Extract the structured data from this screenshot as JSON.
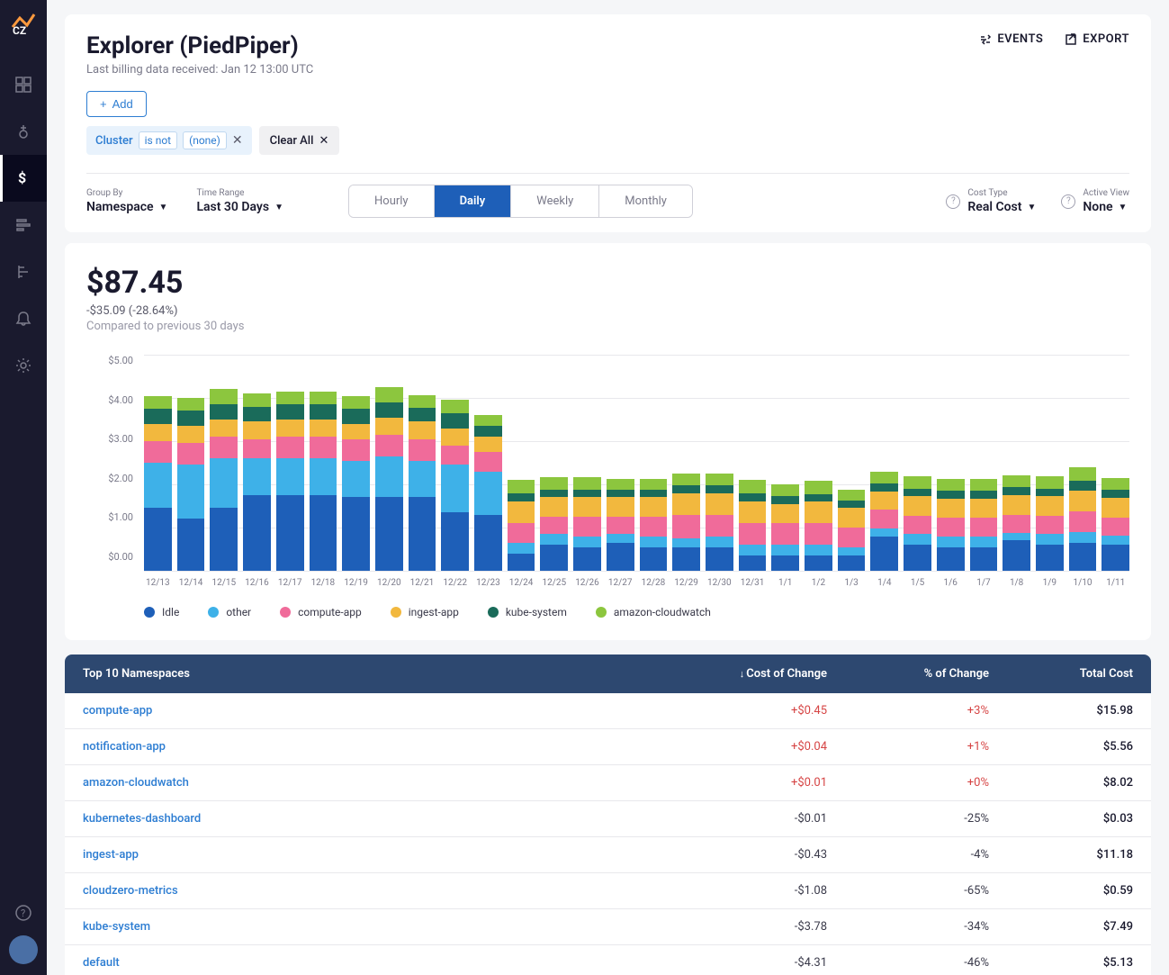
{
  "page": {
    "title": "Explorer (PiedPiper)",
    "subtitle": "Last billing data received: Jan 12 13:00 UTC"
  },
  "header_actions": {
    "events": "EVENTS",
    "export": "EXPORT"
  },
  "filters": {
    "add_label": "Add",
    "chip": {
      "field": "Cluster",
      "operator": "is not",
      "value": "(none)"
    },
    "clear_all": "Clear All"
  },
  "controls": {
    "group_by_label": "Group By",
    "group_by_value": "Namespace",
    "time_range_label": "Time Range",
    "time_range_value": "Last 30 Days",
    "granularity": {
      "hourly": "Hourly",
      "daily": "Daily",
      "weekly": "Weekly",
      "monthly": "Monthly",
      "active": "daily"
    },
    "cost_type_label": "Cost Type",
    "cost_type_value": "Real Cost",
    "active_view_label": "Active View",
    "active_view_value": "None"
  },
  "summary": {
    "total": "$87.45",
    "delta": "-$35.09 (-28.64%)",
    "compare": "Compared to previous 30 days"
  },
  "chart": {
    "type": "stacked-bar",
    "ylim": [
      0,
      5
    ],
    "ytick_step": 1,
    "yticks": [
      "$5.00",
      "$4.00",
      "$3.00",
      "$2.00",
      "$1.00",
      "$0.00"
    ],
    "series_colors": {
      "idle": "#1e5fb8",
      "other": "#3eb1e8",
      "compute_app": "#f06b9a",
      "ingest_app": "#f2b83e",
      "kube_system": "#1a6b5a",
      "amazon_cloudwatch": "#8cc63e"
    },
    "xlabels": [
      "12/13",
      "12/14",
      "12/15",
      "12/16",
      "12/17",
      "12/18",
      "12/19",
      "12/20",
      "12/21",
      "12/22",
      "12/23",
      "12/24",
      "12/25",
      "12/26",
      "12/27",
      "12/28",
      "12/29",
      "12/30",
      "12/31",
      "1/1",
      "1/2",
      "1/3",
      "1/4",
      "1/5",
      "1/6",
      "1/7",
      "1/8",
      "1/9",
      "1/10",
      "1/11"
    ],
    "data": [
      {
        "idle": 1.45,
        "other": 1.05,
        "compute_app": 0.5,
        "ingest_app": 0.4,
        "kube_system": 0.35,
        "amazon_cloudwatch": 0.3
      },
      {
        "idle": 1.2,
        "other": 1.25,
        "compute_app": 0.5,
        "ingest_app": 0.4,
        "kube_system": 0.35,
        "amazon_cloudwatch": 0.3
      },
      {
        "idle": 1.45,
        "other": 1.15,
        "compute_app": 0.5,
        "ingest_app": 0.4,
        "kube_system": 0.35,
        "amazon_cloudwatch": 0.35
      },
      {
        "idle": 1.75,
        "other": 0.85,
        "compute_app": 0.45,
        "ingest_app": 0.4,
        "kube_system": 0.35,
        "amazon_cloudwatch": 0.3
      },
      {
        "idle": 1.75,
        "other": 0.85,
        "compute_app": 0.5,
        "ingest_app": 0.4,
        "kube_system": 0.35,
        "amazon_cloudwatch": 0.3
      },
      {
        "idle": 1.75,
        "other": 0.85,
        "compute_app": 0.5,
        "ingest_app": 0.4,
        "kube_system": 0.35,
        "amazon_cloudwatch": 0.3
      },
      {
        "idle": 1.7,
        "other": 0.85,
        "compute_app": 0.5,
        "ingest_app": 0.35,
        "kube_system": 0.35,
        "amazon_cloudwatch": 0.3
      },
      {
        "idle": 1.7,
        "other": 0.95,
        "compute_app": 0.5,
        "ingest_app": 0.4,
        "kube_system": 0.35,
        "amazon_cloudwatch": 0.35
      },
      {
        "idle": 1.7,
        "other": 0.85,
        "compute_app": 0.5,
        "ingest_app": 0.4,
        "kube_system": 0.32,
        "amazon_cloudwatch": 0.3
      },
      {
        "idle": 1.35,
        "other": 1.1,
        "compute_app": 0.45,
        "ingest_app": 0.4,
        "kube_system": 0.35,
        "amazon_cloudwatch": 0.3
      },
      {
        "idle": 1.3,
        "other": 1.0,
        "compute_app": 0.45,
        "ingest_app": 0.35,
        "kube_system": 0.25,
        "amazon_cloudwatch": 0.25
      },
      {
        "idle": 0.4,
        "other": 0.25,
        "compute_app": 0.45,
        "ingest_app": 0.5,
        "kube_system": 0.2,
        "amazon_cloudwatch": 0.3
      },
      {
        "idle": 0.6,
        "other": 0.25,
        "compute_app": 0.4,
        "ingest_app": 0.45,
        "kube_system": 0.18,
        "amazon_cloudwatch": 0.28
      },
      {
        "idle": 0.55,
        "other": 0.25,
        "compute_app": 0.45,
        "ingest_app": 0.45,
        "kube_system": 0.18,
        "amazon_cloudwatch": 0.28
      },
      {
        "idle": 0.65,
        "other": 0.2,
        "compute_app": 0.4,
        "ingest_app": 0.45,
        "kube_system": 0.18,
        "amazon_cloudwatch": 0.25
      },
      {
        "idle": 0.55,
        "other": 0.25,
        "compute_app": 0.45,
        "ingest_app": 0.45,
        "kube_system": 0.18,
        "amazon_cloudwatch": 0.25
      },
      {
        "idle": 0.55,
        "other": 0.2,
        "compute_app": 0.55,
        "ingest_app": 0.5,
        "kube_system": 0.18,
        "amazon_cloudwatch": 0.28
      },
      {
        "idle": 0.55,
        "other": 0.25,
        "compute_app": 0.5,
        "ingest_app": 0.5,
        "kube_system": 0.18,
        "amazon_cloudwatch": 0.28
      },
      {
        "idle": 0.35,
        "other": 0.25,
        "compute_app": 0.5,
        "ingest_app": 0.5,
        "kube_system": 0.2,
        "amazon_cloudwatch": 0.3
      },
      {
        "idle": 0.35,
        "other": 0.25,
        "compute_app": 0.5,
        "ingest_app": 0.45,
        "kube_system": 0.18,
        "amazon_cloudwatch": 0.28
      },
      {
        "idle": 0.35,
        "other": 0.25,
        "compute_app": 0.5,
        "ingest_app": 0.5,
        "kube_system": 0.18,
        "amazon_cloudwatch": 0.3
      },
      {
        "idle": 0.35,
        "other": 0.2,
        "compute_app": 0.45,
        "ingest_app": 0.45,
        "kube_system": 0.18,
        "amazon_cloudwatch": 0.25
      },
      {
        "idle": 0.8,
        "other": 0.17,
        "compute_app": 0.45,
        "ingest_app": 0.42,
        "kube_system": 0.18,
        "amazon_cloudwatch": 0.28
      },
      {
        "idle": 0.6,
        "other": 0.25,
        "compute_app": 0.42,
        "ingest_app": 0.45,
        "kube_system": 0.18,
        "amazon_cloudwatch": 0.28
      },
      {
        "idle": 0.55,
        "other": 0.25,
        "compute_app": 0.42,
        "ingest_app": 0.45,
        "kube_system": 0.18,
        "amazon_cloudwatch": 0.28
      },
      {
        "idle": 0.55,
        "other": 0.25,
        "compute_app": 0.42,
        "ingest_app": 0.45,
        "kube_system": 0.18,
        "amazon_cloudwatch": 0.28
      },
      {
        "idle": 0.7,
        "other": 0.18,
        "compute_app": 0.42,
        "ingest_app": 0.45,
        "kube_system": 0.18,
        "amazon_cloudwatch": 0.28
      },
      {
        "idle": 0.6,
        "other": 0.25,
        "compute_app": 0.42,
        "ingest_app": 0.45,
        "kube_system": 0.18,
        "amazon_cloudwatch": 0.28
      },
      {
        "idle": 0.65,
        "other": 0.25,
        "compute_app": 0.48,
        "ingest_app": 0.48,
        "kube_system": 0.22,
        "amazon_cloudwatch": 0.32
      },
      {
        "idle": 0.6,
        "other": 0.22,
        "compute_app": 0.42,
        "ingest_app": 0.45,
        "kube_system": 0.18,
        "amazon_cloudwatch": 0.28
      }
    ],
    "legend": [
      {
        "key": "idle",
        "label": "Idle"
      },
      {
        "key": "other",
        "label": "other"
      },
      {
        "key": "compute_app",
        "label": "compute-app"
      },
      {
        "key": "ingest_app",
        "label": "ingest-app"
      },
      {
        "key": "kube_system",
        "label": "kube-system"
      },
      {
        "key": "amazon_cloudwatch",
        "label": "amazon-cloudwatch"
      }
    ]
  },
  "table": {
    "title": "Top 10 Namespaces",
    "columns": {
      "change": "Cost of Change",
      "pct": "% of Change",
      "total": "Total Cost"
    },
    "rows": [
      {
        "name": "compute-app",
        "change": "+$0.45",
        "pct": "+3%",
        "total": "$15.98",
        "positive": true
      },
      {
        "name": "notification-app",
        "change": "+$0.04",
        "pct": "+1%",
        "total": "$5.56",
        "positive": true
      },
      {
        "name": "amazon-cloudwatch",
        "change": "+$0.01",
        "pct": "+0%",
        "total": "$8.02",
        "positive": true
      },
      {
        "name": "kubernetes-dashboard",
        "change": "-$0.01",
        "pct": "-25%",
        "total": "$0.03",
        "positive": false
      },
      {
        "name": "ingest-app",
        "change": "-$0.43",
        "pct": "-4%",
        "total": "$11.18",
        "positive": false
      },
      {
        "name": "cloudzero-metrics",
        "change": "-$1.08",
        "pct": "-65%",
        "total": "$0.59",
        "positive": false
      },
      {
        "name": "kube-system",
        "change": "-$3.78",
        "pct": "-34%",
        "total": "$7.49",
        "positive": false
      },
      {
        "name": "default",
        "change": "-$4.31",
        "pct": "-46%",
        "total": "$5.13",
        "positive": false
      }
    ]
  }
}
